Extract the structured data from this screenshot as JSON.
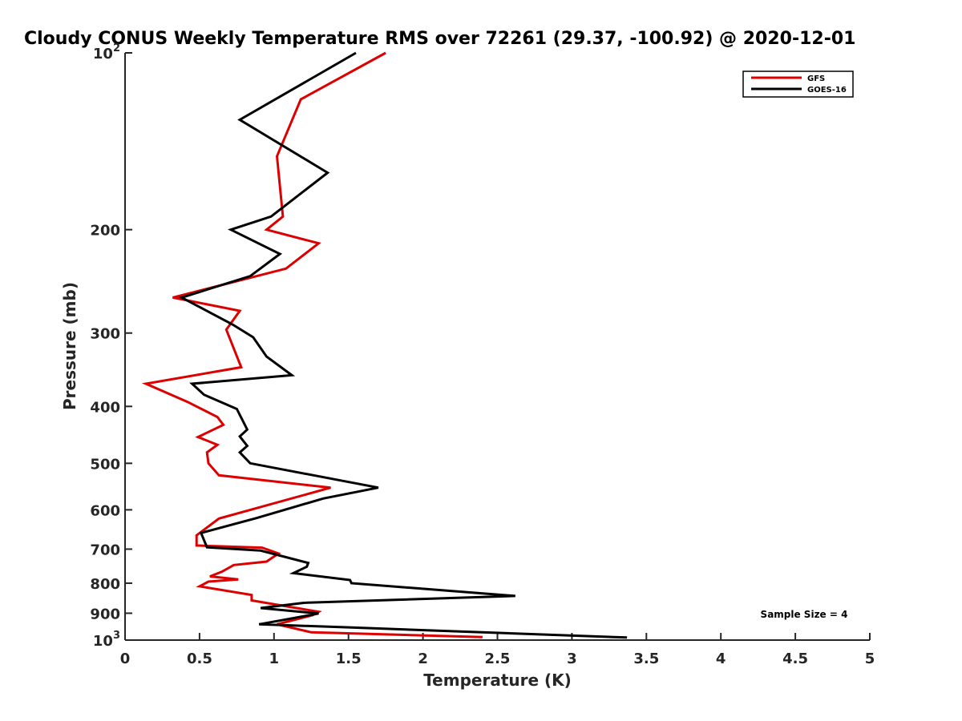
{
  "chart_data": {
    "type": "line",
    "title": "Cloudy CONUS Weekly Temperature RMS over 72261 (29.37, -100.92) @ 2020-12-01",
    "xlabel": "Temperature (K)",
    "ylabel": "Pressure (mb)",
    "xlim": [
      0,
      5
    ],
    "ylim": [
      100,
      1000
    ],
    "y_scale": "log",
    "y_reversed": true,
    "x_ticks": [
      "0",
      "0.5",
      "1",
      "1.5",
      "2",
      "2.5",
      "3",
      "3.5",
      "4",
      "4.5",
      "5"
    ],
    "x_tick_values": [
      0,
      0.5,
      1,
      1.5,
      2,
      2.5,
      3,
      3.5,
      4,
      4.5,
      5
    ],
    "y_tick_values": [
      100,
      200,
      300,
      400,
      500,
      600,
      700,
      800,
      900,
      1000
    ],
    "y_tick_labels": [
      {
        "base": "10",
        "exp": "2"
      },
      {
        "base": "200"
      },
      {
        "base": "300"
      },
      {
        "base": "400"
      },
      {
        "base": "500"
      },
      {
        "base": "600"
      },
      {
        "base": "700"
      },
      {
        "base": "800"
      },
      {
        "base": "900"
      },
      {
        "base": "10",
        "exp": "3"
      }
    ],
    "legend_position": "top-right",
    "annotation": "Sample Size = 4",
    "series": [
      {
        "name": "GFS",
        "color": "#dd0000",
        "points": [
          [
            1.75,
            100
          ],
          [
            1.18,
            120
          ],
          [
            1.02,
            150
          ],
          [
            1.06,
            190
          ],
          [
            0.95,
            200
          ],
          [
            1.3,
            211
          ],
          [
            1.08,
            233
          ],
          [
            0.32,
            261
          ],
          [
            0.77,
            275
          ],
          [
            0.68,
            296
          ],
          [
            0.78,
            343
          ],
          [
            0.14,
            366
          ],
          [
            0.42,
            393
          ],
          [
            0.62,
            417
          ],
          [
            0.66,
            430
          ],
          [
            0.49,
            451
          ],
          [
            0.62,
            465
          ],
          [
            0.55,
            479
          ],
          [
            0.56,
            500
          ],
          [
            0.63,
            524
          ],
          [
            1.38,
            550
          ],
          [
            0.63,
            621
          ],
          [
            0.48,
            663
          ],
          [
            0.48,
            690
          ],
          [
            0.92,
            696
          ],
          [
            1.03,
            712
          ],
          [
            0.95,
            735
          ],
          [
            0.73,
            745
          ],
          [
            0.65,
            765
          ],
          [
            0.57,
            779
          ],
          [
            0.76,
            788
          ],
          [
            0.56,
            795
          ],
          [
            0.5,
            810
          ],
          [
            0.85,
            838
          ],
          [
            0.85,
            856
          ],
          [
            1.3,
            895
          ],
          [
            1.26,
            907
          ],
          [
            1.02,
            940
          ],
          [
            1.25,
            970
          ],
          [
            2.4,
            988
          ]
        ]
      },
      {
        "name": "GOES-16",
        "color": "#000000",
        "points": [
          [
            1.55,
            100
          ],
          [
            0.77,
            130
          ],
          [
            1.36,
            160
          ],
          [
            0.98,
            190
          ],
          [
            0.71,
            200
          ],
          [
            1.04,
            220
          ],
          [
            0.84,
            240
          ],
          [
            0.38,
            261
          ],
          [
            0.72,
            290
          ],
          [
            0.86,
            305
          ],
          [
            0.95,
            329
          ],
          [
            1.12,
            354
          ],
          [
            0.45,
            366
          ],
          [
            0.53,
            382
          ],
          [
            0.75,
            404
          ],
          [
            0.82,
            438
          ],
          [
            0.77,
            450
          ],
          [
            0.82,
            467
          ],
          [
            0.77,
            479
          ],
          [
            0.84,
            500
          ],
          [
            1.7,
            550
          ],
          [
            1.33,
            574
          ],
          [
            0.88,
            620
          ],
          [
            0.51,
            657
          ],
          [
            0.55,
            695
          ],
          [
            0.91,
            704
          ],
          [
            1.23,
            739
          ],
          [
            1.22,
            750
          ],
          [
            1.13,
            769
          ],
          [
            1.51,
            790
          ],
          [
            1.52,
            800
          ],
          [
            2.62,
            841
          ],
          [
            1.2,
            864
          ],
          [
            0.91,
            882
          ],
          [
            1.3,
            901
          ],
          [
            0.9,
            940
          ],
          [
            1.52,
            952
          ],
          [
            3.37,
            990
          ]
        ]
      }
    ]
  }
}
